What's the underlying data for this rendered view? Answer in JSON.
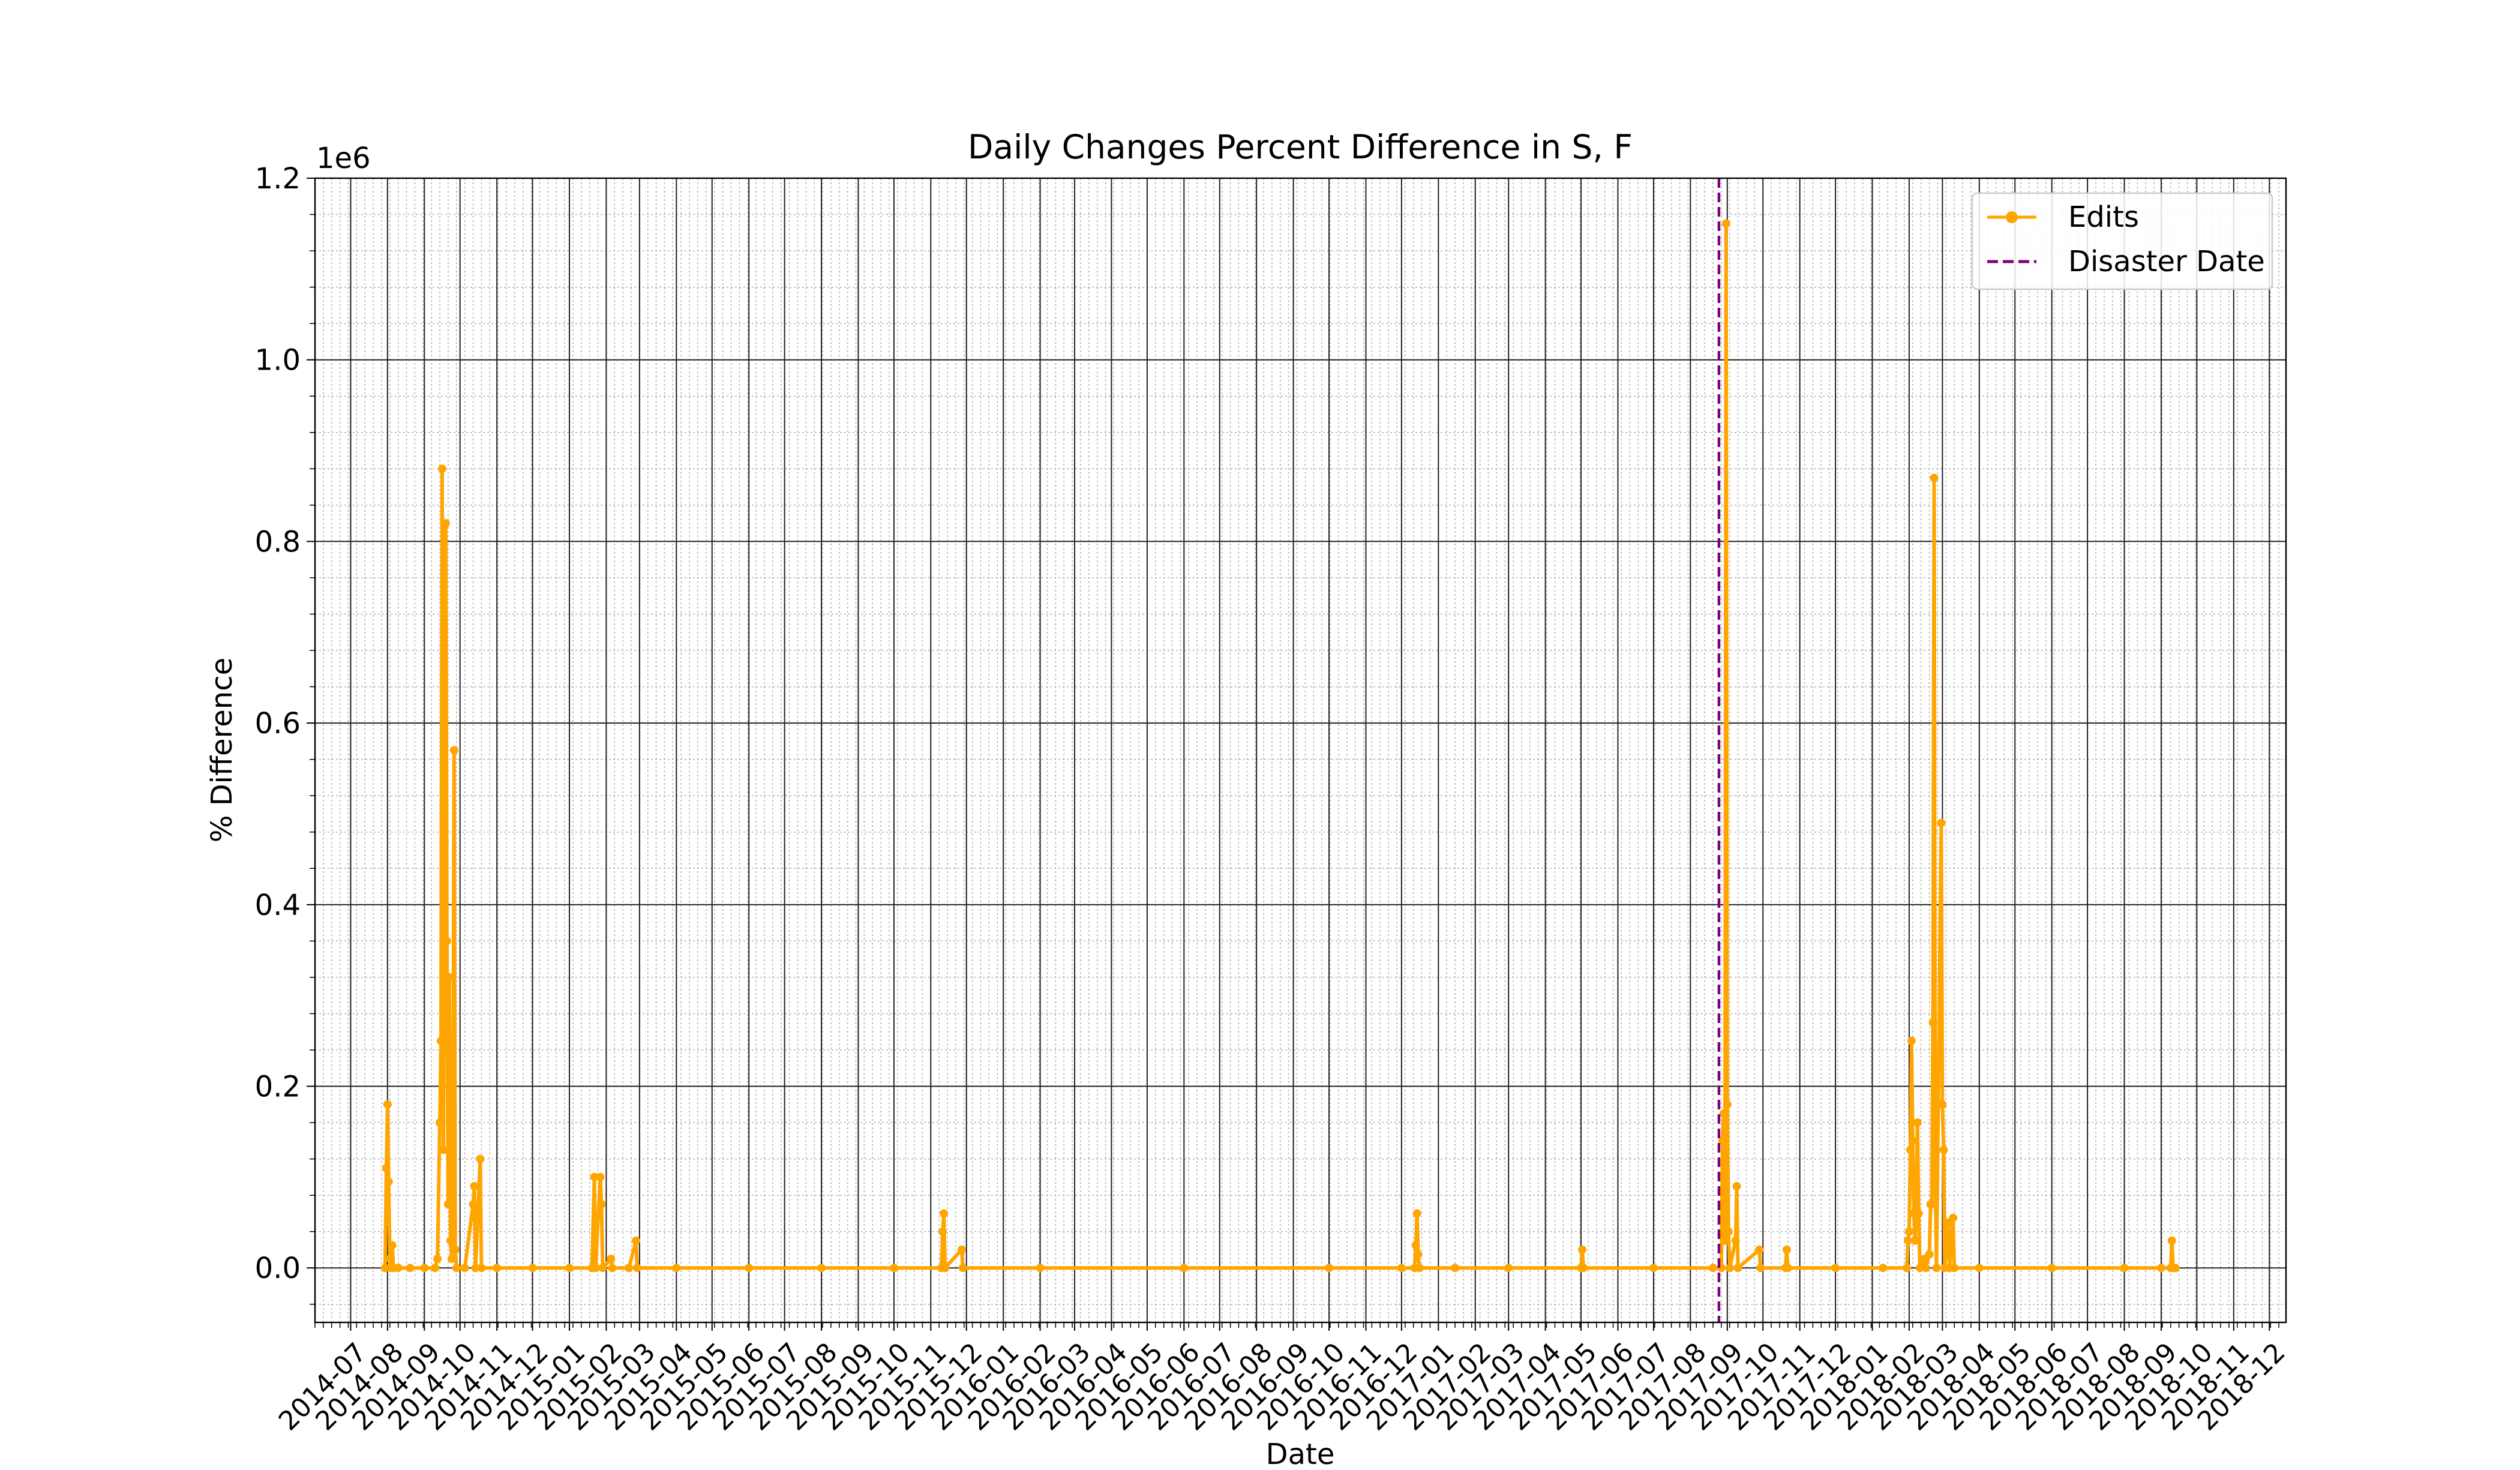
{
  "chart_data": {
    "type": "line",
    "title": "Daily Changes Percent Difference in S, F",
    "xlabel": "Date",
    "ylabel": "% Difference",
    "y_multiplier_label": "1e6",
    "xlim": [
      "2014-06-01",
      "2018-12-15"
    ],
    "ylim": [
      -0.06,
      1.2
    ],
    "y_scale_factor": 1000000,
    "y_ticks": [
      0.0,
      0.2,
      0.4,
      0.6,
      0.8,
      1.0,
      1.2
    ],
    "y_tick_labels": [
      "0.0",
      "0.2",
      "0.4",
      "0.6",
      "0.8",
      "1.0",
      "1.2"
    ],
    "x_tick_labels": [
      "2014-07",
      "2014-08",
      "2014-09",
      "2014-10",
      "2014-11",
      "2014-12",
      "2015-01",
      "2015-02",
      "2015-03",
      "2015-04",
      "2015-05",
      "2015-06",
      "2015-07",
      "2015-08",
      "2015-09",
      "2015-10",
      "2015-11",
      "2015-12",
      "2016-01",
      "2016-02",
      "2016-03",
      "2016-04",
      "2016-05",
      "2016-06",
      "2016-07",
      "2016-08",
      "2016-09",
      "2016-10",
      "2016-11",
      "2016-12",
      "2017-01",
      "2017-02",
      "2017-03",
      "2017-04",
      "2017-05",
      "2017-06",
      "2017-07",
      "2017-08",
      "2017-09",
      "2017-10",
      "2017-11",
      "2017-12",
      "2018-01",
      "2018-02",
      "2018-03",
      "2018-04",
      "2018-05",
      "2018-06",
      "2018-07",
      "2018-08",
      "2018-09",
      "2018-10",
      "2018-11",
      "2018-12"
    ],
    "grid": true,
    "legend_position": "top-right",
    "legend": [
      {
        "label": "Edits",
        "color": "#FFA500",
        "style": "solid line with markers"
      },
      {
        "label": "Disaster Date",
        "color": "#800080",
        "style": "dashed"
      }
    ],
    "disaster_date": "2017-08-25",
    "series": [
      {
        "name": "Edits",
        "color": "#FFA500",
        "points": [
          [
            "2014-07-30",
            0
          ],
          [
            "2014-07-31",
            0.11
          ],
          [
            "2014-08-01",
            0.18
          ],
          [
            "2014-08-02",
            0.095
          ],
          [
            "2014-08-03",
            0.01
          ],
          [
            "2014-08-04",
            0
          ],
          [
            "2014-08-05",
            0.025
          ],
          [
            "2014-08-06",
            0
          ],
          [
            "2014-08-10",
            0
          ],
          [
            "2014-08-20",
            0
          ],
          [
            "2014-09-01",
            0
          ],
          [
            "2014-09-10",
            0
          ],
          [
            "2014-09-12",
            0.01
          ],
          [
            "2014-09-14",
            0.16
          ],
          [
            "2014-09-15",
            0.25
          ],
          [
            "2014-09-16",
            0.88
          ],
          [
            "2014-09-17",
            0.13
          ],
          [
            "2014-09-18",
            0.47
          ],
          [
            "2014-09-19",
            0.82
          ],
          [
            "2014-09-20",
            0.36
          ],
          [
            "2014-09-21",
            0.07
          ],
          [
            "2014-09-22",
            0.32
          ],
          [
            "2014-09-23",
            0.03
          ],
          [
            "2014-09-24",
            0.01
          ],
          [
            "2014-09-25",
            0.07
          ],
          [
            "2014-09-26",
            0.57
          ],
          [
            "2014-09-27",
            0.02
          ],
          [
            "2014-09-28",
            0
          ],
          [
            "2014-10-05",
            0
          ],
          [
            "2014-10-12",
            0.07
          ],
          [
            "2014-10-13",
            0.09
          ],
          [
            "2014-10-14",
            0
          ],
          [
            "2014-10-18",
            0.12
          ],
          [
            "2014-10-19",
            0
          ],
          [
            "2014-11-01",
            0
          ],
          [
            "2014-12-01",
            0
          ],
          [
            "2015-01-01",
            0
          ],
          [
            "2015-01-20",
            0
          ],
          [
            "2015-01-22",
            0.1
          ],
          [
            "2015-01-23",
            0
          ],
          [
            "2015-01-27",
            0.1
          ],
          [
            "2015-01-28",
            0.07
          ],
          [
            "2015-01-29",
            0
          ],
          [
            "2015-02-05",
            0.01
          ],
          [
            "2015-02-06",
            0
          ],
          [
            "2015-02-20",
            0
          ],
          [
            "2015-02-26",
            0.03
          ],
          [
            "2015-02-27",
            0
          ],
          [
            "2015-04-01",
            0
          ],
          [
            "2015-06-01",
            0
          ],
          [
            "2015-08-01",
            0
          ],
          [
            "2015-10-01",
            0
          ],
          [
            "2015-11-10",
            0
          ],
          [
            "2015-11-11",
            0.04
          ],
          [
            "2015-11-12",
            0.06
          ],
          [
            "2015-11-13",
            0
          ],
          [
            "2015-11-27",
            0.02
          ],
          [
            "2015-11-28",
            0
          ],
          [
            "2016-02-01",
            0
          ],
          [
            "2016-06-01",
            0
          ],
          [
            "2016-10-01",
            0
          ],
          [
            "2016-12-01",
            0
          ],
          [
            "2016-12-12",
            0
          ],
          [
            "2016-12-13",
            0.025
          ],
          [
            "2016-12-14",
            0.06
          ],
          [
            "2016-12-15",
            0.015
          ],
          [
            "2016-12-16",
            0
          ],
          [
            "2017-01-15",
            0
          ],
          [
            "2017-03-01",
            0
          ],
          [
            "2017-05-01",
            0
          ],
          [
            "2017-05-02",
            0.02
          ],
          [
            "2017-05-03",
            0
          ],
          [
            "2017-07-01",
            0
          ],
          [
            "2017-08-20",
            0
          ],
          [
            "2017-08-27",
            0
          ],
          [
            "2017-08-28",
            0.14
          ],
          [
            "2017-08-29",
            0.17
          ],
          [
            "2017-08-30",
            0.03
          ],
          [
            "2017-08-31",
            1.15
          ],
          [
            "2017-09-01",
            0.18
          ],
          [
            "2017-09-02",
            0.04
          ],
          [
            "2017-09-03",
            0
          ],
          [
            "2017-09-08",
            0.03
          ],
          [
            "2017-09-09",
            0.09
          ],
          [
            "2017-09-10",
            0
          ],
          [
            "2017-09-28",
            0.02
          ],
          [
            "2017-09-29",
            0
          ],
          [
            "2017-10-20",
            0
          ],
          [
            "2017-10-21",
            0.02
          ],
          [
            "2017-10-22",
            0
          ],
          [
            "2017-12-01",
            0
          ],
          [
            "2018-01-10",
            0
          ],
          [
            "2018-01-30",
            0
          ],
          [
            "2018-01-31",
            0.03
          ],
          [
            "2018-02-01",
            0.04
          ],
          [
            "2018-02-02",
            0.13
          ],
          [
            "2018-02-03",
            0.25
          ],
          [
            "2018-02-04",
            0.14
          ],
          [
            "2018-02-05",
            0.06
          ],
          [
            "2018-02-06",
            0.03
          ],
          [
            "2018-02-07",
            0.07
          ],
          [
            "2018-02-08",
            0.16
          ],
          [
            "2018-02-09",
            0.06
          ],
          [
            "2018-02-10",
            0
          ],
          [
            "2018-02-14",
            0.01
          ],
          [
            "2018-02-15",
            0
          ],
          [
            "2018-02-18",
            0.015
          ],
          [
            "2018-02-19",
            0.07
          ],
          [
            "2018-02-20",
            0.07
          ],
          [
            "2018-02-21",
            0.27
          ],
          [
            "2018-02-22",
            0.87
          ],
          [
            "2018-02-23",
            0.1
          ],
          [
            "2018-02-24",
            0
          ],
          [
            "2018-02-28",
            0.49
          ],
          [
            "2018-03-01",
            0.18
          ],
          [
            "2018-03-02",
            0.13
          ],
          [
            "2018-03-03",
            0
          ],
          [
            "2018-03-06",
            0.05
          ],
          [
            "2018-03-07",
            0
          ],
          [
            "2018-03-10",
            0.055
          ],
          [
            "2018-03-11",
            0
          ],
          [
            "2018-04-01",
            0
          ],
          [
            "2018-06-01",
            0
          ],
          [
            "2018-08-01",
            0
          ],
          [
            "2018-09-01",
            0
          ],
          [
            "2018-09-09",
            0
          ],
          [
            "2018-09-10",
            0.03
          ],
          [
            "2018-09-11",
            0
          ],
          [
            "2018-09-13",
            0
          ]
        ]
      }
    ]
  }
}
